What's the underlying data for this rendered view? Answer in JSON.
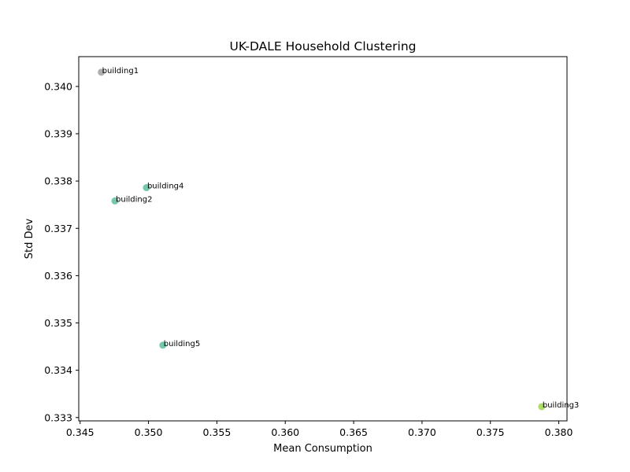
{
  "chart_data": {
    "type": "scatter",
    "title": "UK-DALE Household Clustering",
    "xlabel": "Mean Consumption",
    "ylabel": "Std Dev",
    "xlim": [
      0.3449,
      0.3806
    ],
    "ylim": [
      0.33293,
      0.34063
    ],
    "xticks": [
      "0.345",
      "0.350",
      "0.355",
      "0.360",
      "0.365",
      "0.370",
      "0.375",
      "0.380"
    ],
    "yticks": [
      "0.333",
      "0.334",
      "0.335",
      "0.336",
      "0.337",
      "0.338",
      "0.339",
      "0.340"
    ],
    "grid": false,
    "points": [
      {
        "label": "building1",
        "x": 0.34655,
        "y": 0.3403,
        "color": "#a6a6a6"
      },
      {
        "label": "building2",
        "x": 0.34755,
        "y": 0.33758,
        "color": "#66c2a5"
      },
      {
        "label": "building4",
        "x": 0.34985,
        "y": 0.33786,
        "color": "#66c2a5"
      },
      {
        "label": "building5",
        "x": 0.35105,
        "y": 0.33453,
        "color": "#66c2a5"
      },
      {
        "label": "building3",
        "x": 0.37875,
        "y": 0.33323,
        "color": "#a6d854"
      }
    ]
  }
}
